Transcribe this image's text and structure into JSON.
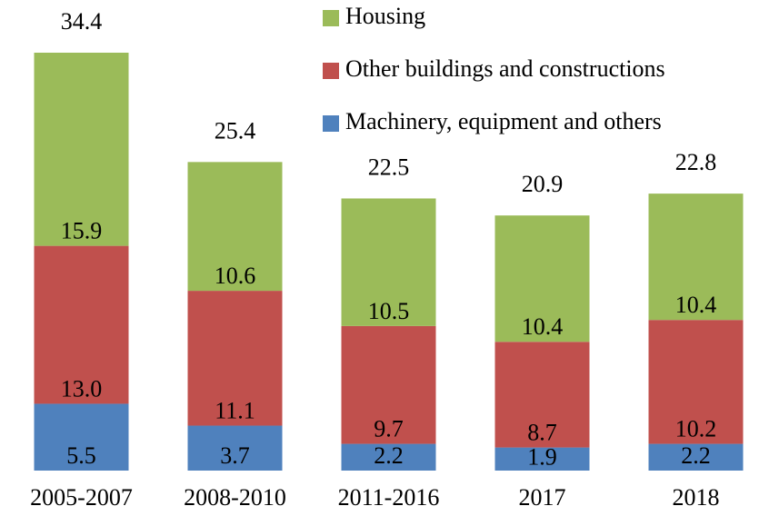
{
  "chart_data": {
    "type": "stacked_bar",
    "categories": [
      "2005-2007",
      "2008-2010",
      "2011-2016",
      "2017",
      "2018"
    ],
    "series": [
      {
        "name": "Machinery, equipment and others",
        "color": "#4f81bd",
        "values": [
          5.5,
          3.7,
          2.2,
          1.9,
          2.2
        ]
      },
      {
        "name": "Other buildings and constructions",
        "color": "#c0504d",
        "values": [
          13.0,
          11.1,
          9.7,
          8.7,
          10.2
        ],
        "value_labels": [
          "13.0",
          "11.1",
          "9.7",
          "8.7",
          "10.2"
        ]
      },
      {
        "name": "Housing",
        "color": "#9bbb59",
        "values": [
          15.9,
          10.6,
          10.5,
          10.4,
          10.4
        ]
      }
    ],
    "totals": [
      34.4,
      25.4,
      22.5,
      20.9,
      22.8
    ]
  }
}
